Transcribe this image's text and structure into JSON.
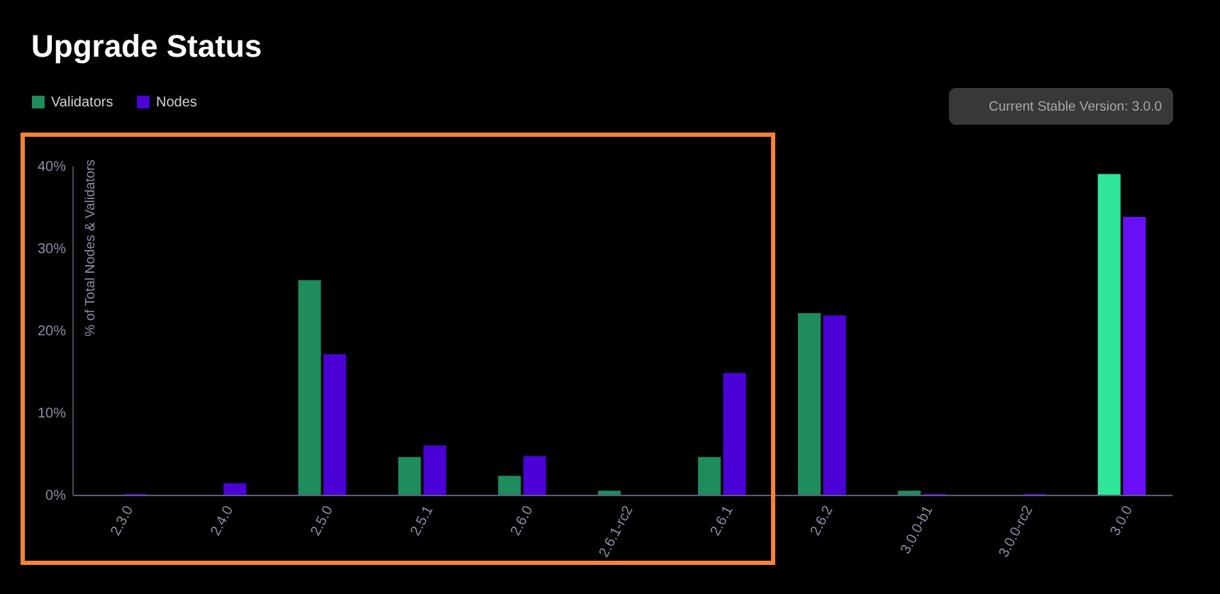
{
  "chart_data": {
    "type": "bar",
    "title": "Upgrade Status",
    "ylabel": "% of Total Nodes & Validators",
    "categories": [
      "2.3.0",
      "2.4.0",
      "2.5.0",
      "2.5.1",
      "2.6.0",
      "2.6.1-rc2",
      "2.6.1",
      "2.6.2",
      "3.0.0-b1",
      "3.0.0-rc2",
      "3.0.0"
    ],
    "series": [
      {
        "name": "Validators",
        "color": "#1e8c5d",
        "colors": [
          "#1e8c5d",
          "#1e8c5d",
          "#1e8c5d",
          "#1e8c5d",
          "#1e8c5d",
          "#1e8c5d",
          "#1e8c5d",
          "#1e8c5d",
          "#1e8c5d",
          "#1e8c5d",
          "#2fe69a"
        ],
        "values": [
          0,
          0,
          26.1,
          4.6,
          2.3,
          0.5,
          4.6,
          22.1,
          0.5,
          0,
          39.0
        ]
      },
      {
        "name": "Nodes",
        "color": "#4b02d6",
        "colors": [
          "#4b02d6",
          "#4b02d6",
          "#4b02d6",
          "#4b02d6",
          "#4b02d6",
          "#4b02d6",
          "#4b02d6",
          "#4b02d6",
          "#4b02d6",
          "#4b02d6",
          "#6a10f8"
        ],
        "values": [
          0.1,
          1.4,
          17.1,
          6.0,
          4.7,
          0,
          14.8,
          21.8,
          0.1,
          0.1,
          33.8
        ]
      }
    ],
    "ylim": [
      0,
      40
    ],
    "yticks": [
      {
        "value": 0,
        "label": "0%"
      },
      {
        "value": 10,
        "label": "10%"
      },
      {
        "value": 20,
        "label": "20%"
      },
      {
        "value": 30,
        "label": "30%"
      },
      {
        "value": 40,
        "label": "40%"
      }
    ],
    "legend": "top left",
    "annotations": [
      "Current Stable Version: 3.0.0"
    ]
  }
}
